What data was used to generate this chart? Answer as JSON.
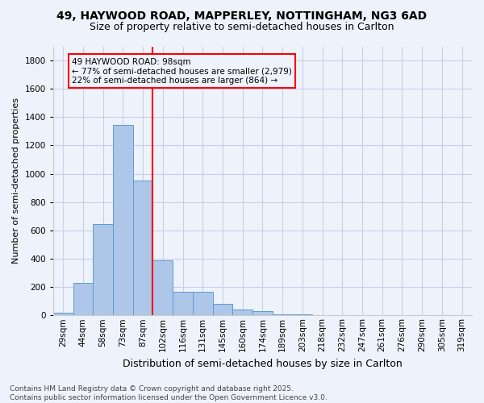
{
  "title_line1": "49, HAYWOOD ROAD, MAPPERLEY, NOTTINGHAM, NG3 6AD",
  "title_line2": "Size of property relative to semi-detached houses in Carlton",
  "xlabel": "Distribution of semi-detached houses by size in Carlton",
  "ylabel": "Number of semi-detached properties",
  "bar_labels": [
    "29sqm",
    "44sqm",
    "58sqm",
    "73sqm",
    "87sqm",
    "102sqm",
    "116sqm",
    "131sqm",
    "145sqm",
    "160sqm",
    "174sqm",
    "189sqm",
    "203sqm",
    "218sqm",
    "232sqm",
    "247sqm",
    "261sqm",
    "276sqm",
    "290sqm",
    "305sqm",
    "319sqm"
  ],
  "bar_values": [
    20,
    230,
    645,
    1345,
    950,
    390,
    165,
    165,
    80,
    40,
    28,
    10,
    5,
    2,
    1,
    0,
    0,
    0,
    0,
    0,
    0
  ],
  "bar_color": "#aec6e8",
  "bar_edge_color": "#5b9bd5",
  "vline_index": 5,
  "vline_color": "red",
  "annotation_text": "49 HAYWOOD ROAD: 98sqm\n← 77% of semi-detached houses are smaller (2,979)\n22% of semi-detached houses are larger (864) →",
  "annotation_box_color": "red",
  "ylim": [
    0,
    1900
  ],
  "yticks": [
    0,
    200,
    400,
    600,
    800,
    1000,
    1200,
    1400,
    1600,
    1800
  ],
  "footer_line1": "Contains HM Land Registry data © Crown copyright and database right 2025.",
  "footer_line2": "Contains public sector information licensed under the Open Government Licence v3.0.",
  "background_color": "#eef2fb",
  "grid_color": "#c8d0e8",
  "title_fontsize": 10,
  "subtitle_fontsize": 9,
  "ylabel_fontsize": 8,
  "xlabel_fontsize": 9,
  "tick_fontsize": 7.5,
  "annot_fontsize": 7.5,
  "footer_fontsize": 6.5
}
